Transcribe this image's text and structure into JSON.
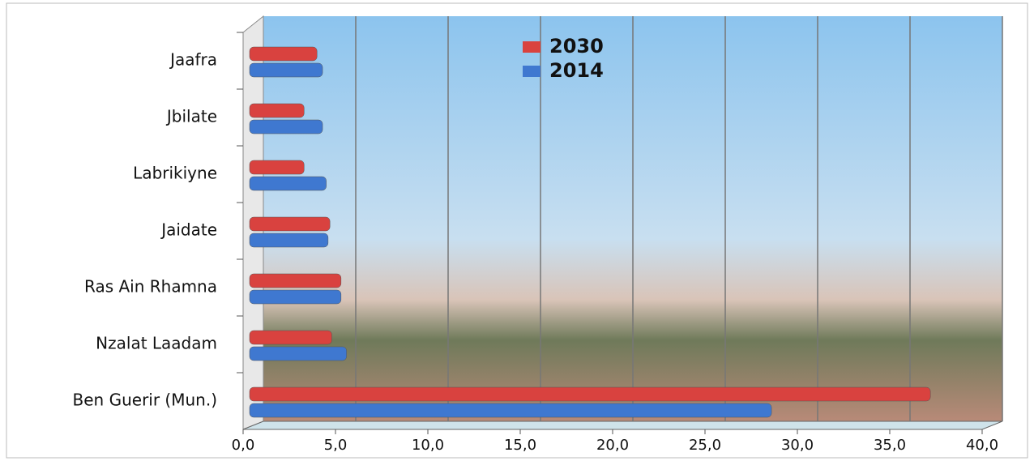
{
  "chart_data": {
    "type": "bar",
    "orientation": "horizontal",
    "categories": [
      "Jaafra",
      "Jbilate",
      "Labrikiyne",
      "Jaidate",
      "Ras Ain Rhamna",
      "Nzalat Laadam",
      "Ben Guerir (Mun.)"
    ],
    "series": [
      {
        "name": "2030",
        "color": "#d9423f",
        "values": [
          4.0,
          3.3,
          3.3,
          4.7,
          5.3,
          4.8,
          37.2
        ]
      },
      {
        "name": "2014",
        "color": "#3f78d0",
        "values": [
          4.3,
          4.3,
          4.5,
          4.6,
          5.3,
          5.6,
          28.6
        ]
      }
    ],
    "xlim": [
      0,
      40
    ],
    "xticks": [
      {
        "value": 0,
        "label": "0,0"
      },
      {
        "value": 5,
        "label": "5,0"
      },
      {
        "value": 10,
        "label": "10,0"
      },
      {
        "value": 15,
        "label": "15,0"
      },
      {
        "value": 20,
        "label": "20,0"
      },
      {
        "value": 25,
        "label": "25,0"
      },
      {
        "value": 30,
        "label": "30,0"
      },
      {
        "value": 35,
        "label": "35,0"
      },
      {
        "value": 40,
        "label": "40,0"
      }
    ],
    "grid": true,
    "legend": "top"
  }
}
